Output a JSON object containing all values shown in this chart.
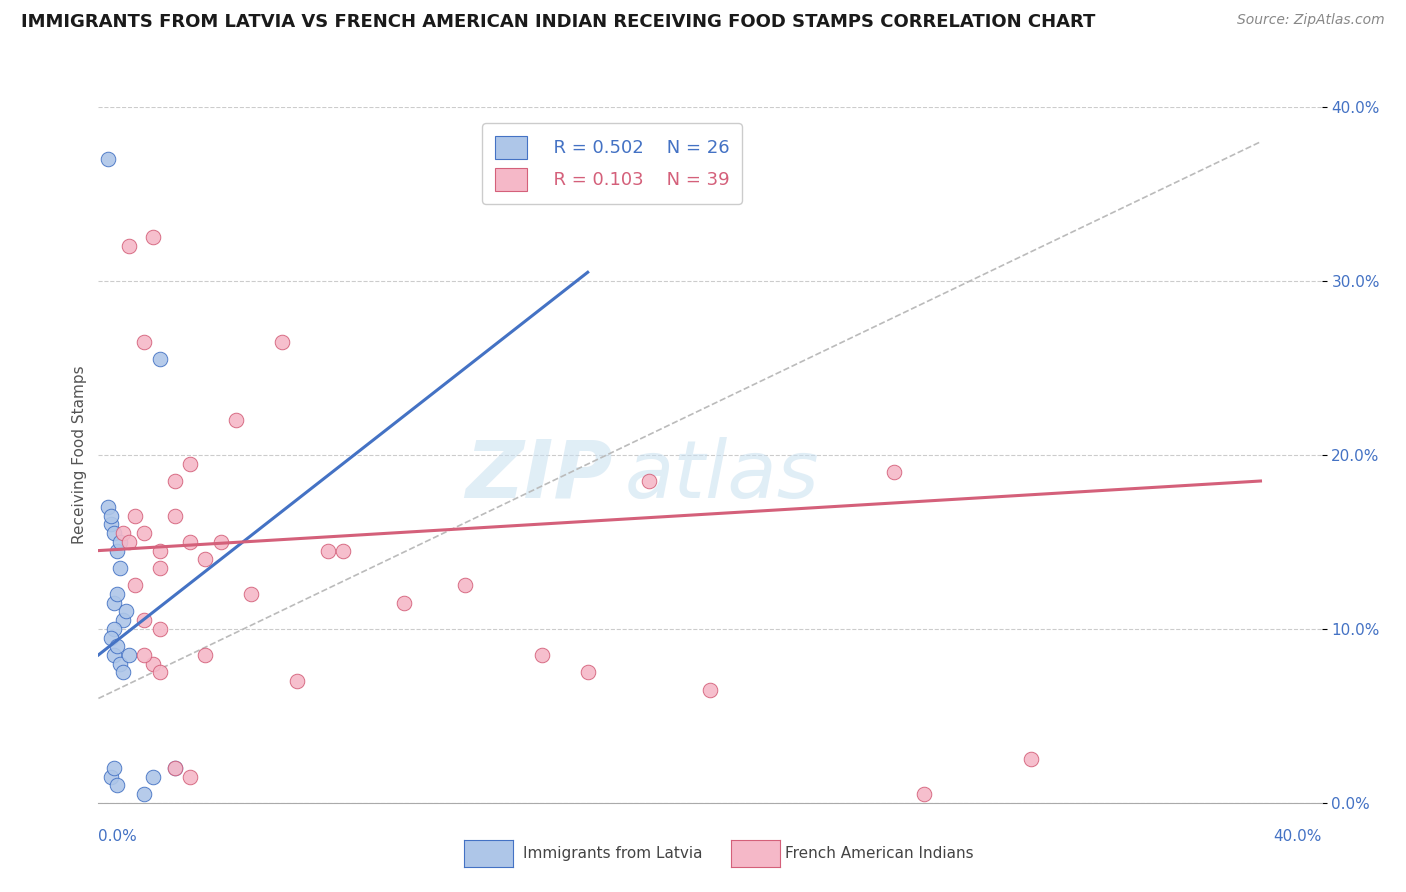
{
  "title": "IMMIGRANTS FROM LATVIA VS FRENCH AMERICAN INDIAN RECEIVING FOOD STAMPS CORRELATION CHART",
  "source": "Source: ZipAtlas.com",
  "ylabel": "Receiving Food Stamps",
  "ytick_vals": [
    0,
    10,
    20,
    30,
    40
  ],
  "xlim": [
    0,
    40
  ],
  "ylim": [
    0,
    40
  ],
  "watermark_zip": "ZIP",
  "watermark_atlas": "atlas",
  "legend_r1": "R = 0.502",
  "legend_n1": "N = 26",
  "legend_r2": "R = 0.103",
  "legend_n2": "N = 39",
  "color_blue": "#aec6e8",
  "color_pink": "#f5b8c8",
  "line_color_blue": "#4472c4",
  "line_color_pink": "#d4607a",
  "trendline_gray": "#bbbbbb",
  "blue_scatter_x": [
    0.4,
    0.5,
    0.6,
    0.7,
    0.5,
    0.6,
    0.7,
    0.8,
    0.3,
    0.4,
    0.5,
    0.3,
    0.4,
    0.5,
    0.6,
    0.7,
    0.8,
    0.9,
    1.0,
    0.4,
    0.5,
    0.6,
    2.0,
    1.5,
    1.8,
    2.5
  ],
  "blue_scatter_y": [
    16.0,
    15.5,
    14.5,
    15.0,
    11.5,
    12.0,
    13.5,
    10.5,
    17.0,
    16.5,
    10.0,
    37.0,
    9.5,
    8.5,
    9.0,
    8.0,
    7.5,
    11.0,
    8.5,
    1.5,
    2.0,
    1.0,
    25.5,
    0.5,
    1.5,
    2.0
  ],
  "pink_scatter_x": [
    0.8,
    1.2,
    1.5,
    1.8,
    2.0,
    2.5,
    3.0,
    3.5,
    4.0,
    4.5,
    5.0,
    6.0,
    6.5,
    7.5,
    8.0,
    10.0,
    12.0,
    14.5,
    16.0,
    18.0,
    20.0,
    26.0,
    27.0,
    30.5,
    1.0,
    1.5,
    2.0,
    2.5,
    3.0,
    1.2,
    1.5,
    1.8,
    2.0,
    3.5,
    1.0,
    1.5,
    2.0,
    2.5,
    3.0
  ],
  "pink_scatter_y": [
    15.5,
    16.5,
    26.5,
    32.5,
    10.0,
    16.5,
    19.5,
    14.0,
    15.0,
    22.0,
    12.0,
    26.5,
    7.0,
    14.5,
    14.5,
    11.5,
    12.5,
    8.5,
    7.5,
    18.5,
    6.5,
    19.0,
    0.5,
    2.5,
    32.0,
    15.5,
    14.5,
    18.5,
    15.0,
    12.5,
    10.5,
    8.0,
    13.5,
    8.5,
    15.0,
    8.5,
    7.5,
    2.0,
    1.5
  ],
  "blue_trend_x0": 0.0,
  "blue_trend_x1": 16.0,
  "blue_trend_y0": 8.5,
  "blue_trend_y1": 30.5,
  "pink_trend_x0": 0.0,
  "pink_trend_x1": 38.0,
  "pink_trend_y0": 14.5,
  "pink_trend_y1": 18.5,
  "gray_trend_x0": 0.0,
  "gray_trend_x1": 38.0,
  "gray_trend_y0": 6.0,
  "gray_trend_y1": 38.0
}
